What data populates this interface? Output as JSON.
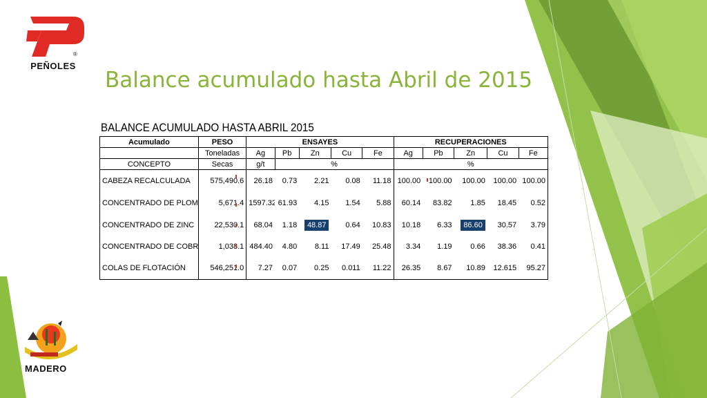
{
  "logos": {
    "top": "PEÑOLES",
    "bottom": "MADERO"
  },
  "title": "Balance acumulado hasta Abril de 2015",
  "table": {
    "caption": "BALANCE ACUMULADO HASTA ABRIL 2015",
    "header1": {
      "acumulado": "Acumulado",
      "peso": "PESO",
      "ensayes": "ENSAYES",
      "recuperaciones": "RECUPERACIONES"
    },
    "header2": {
      "peso": "Toneladas",
      "ensayes": [
        "Ag",
        "Pb",
        "Zn",
        "Cu",
        "Fe"
      ],
      "recuperaciones": [
        "Ag",
        "Pb",
        "Zn",
        "Cu",
        "Fe"
      ]
    },
    "header3": {
      "concepto": "CONCEPTO",
      "peso": "Secas",
      "ag_unit": "g/t",
      "ensayes_unit": "%",
      "recuperaciones_unit": "%"
    },
    "rows": [
      {
        "concepto": "CABEZA RECALCULADA",
        "peso": "575,490.6",
        "ens": [
          "26.18",
          "0.73",
          "2.21",
          "0.08",
          "11.18"
        ],
        "rec": [
          "100.00",
          "100.00",
          "100.00",
          "100.00",
          "100.00"
        ]
      },
      {
        "concepto": "CONCENTRADO DE PLOMO",
        "peso": "5,671.4",
        "ens": [
          "1597.32",
          "61.93",
          "4.15",
          "1.54",
          "5.88"
        ],
        "rec": [
          "60.14",
          "83.82",
          "1.85",
          "18.45",
          "0.52"
        ]
      },
      {
        "concepto": "CONCENTRADO DE ZINC",
        "peso": "22,530.1",
        "ens": [
          "68.04",
          "1.18",
          "48.87",
          "0.64",
          "10.83"
        ],
        "rec": [
          "10.18",
          "6.33",
          "86.60",
          "30.57",
          "3.79"
        ]
      },
      {
        "concepto": "CONCENTRADO DE COBRE",
        "peso": "1,038.1",
        "ens": [
          "484.40",
          "4.80",
          "8.11",
          "17.49",
          "25.48"
        ],
        "rec": [
          "3.34",
          "1.19",
          "0.66",
          "38.36",
          "0.41"
        ]
      },
      {
        "concepto": "COLAS DE FLOTACIÓN",
        "peso": "546,251.0",
        "ens": [
          "7.27",
          "0.07",
          "0.25",
          "0.011",
          "11.22"
        ],
        "rec": [
          "26.35",
          "8.67",
          "10.89",
          "12.615",
          "95.27"
        ]
      }
    ],
    "highlight_color": "#17406d"
  },
  "colors": {
    "title": "#8ab33a",
    "green_dark": "#6a9a2e",
    "green_light": "#a9d04d"
  }
}
